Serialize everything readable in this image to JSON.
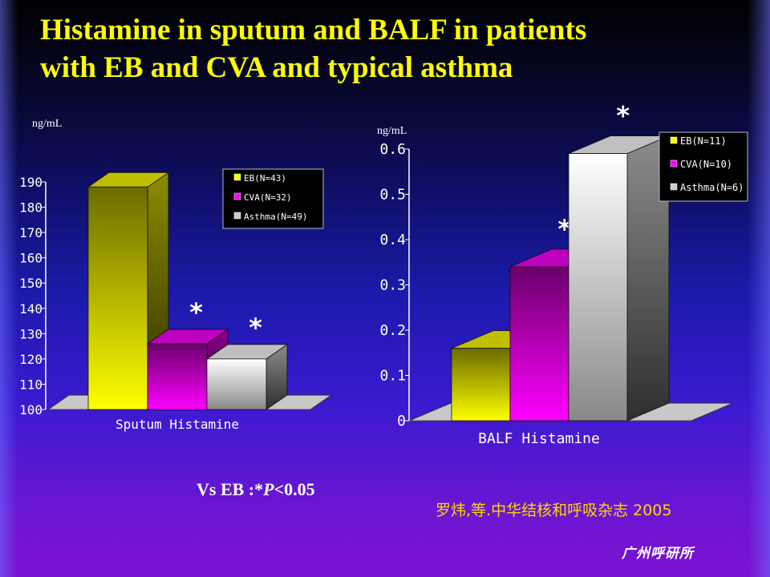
{
  "title_lines": [
    "Histamine in sputum and BALF in patients",
    "with EB and CVA and typical asthma"
  ],
  "footnote": {
    "prefix": "Vs EB :*",
    "p_symbol": "P",
    "suffix": "<0.05"
  },
  "citation": "罗炜,等.中华结核和呼吸杂志 2005",
  "logo_text": "广州呼研所",
  "chart_data": [
    {
      "type": "bar",
      "categories": [
        "Sputum Histamine"
      ],
      "xlabel": "Sputum Histamine",
      "ylabel": "ng/mL",
      "ylim": [
        100,
        190
      ],
      "yticks": [
        "100",
        "110",
        "120",
        "130",
        "140",
        "150",
        "160",
        "170",
        "180",
        "190"
      ],
      "grid": false,
      "legend_position": "top-right",
      "series": [
        {
          "name": "EB(N=43)",
          "values": [
            188
          ],
          "color": "#ffff00",
          "significant": false
        },
        {
          "name": "CVA(N=32)",
          "values": [
            126
          ],
          "color": "#ff00ff",
          "significant": true
        },
        {
          "name": "Asthma(N=49)",
          "values": [
            120
          ],
          "color": "#ffffff",
          "significant": true
        }
      ],
      "significance_marker": "*"
    },
    {
      "type": "bar",
      "categories": [
        "BALF Histamine"
      ],
      "xlabel": "BALF Histamine",
      "ylabel": "ng/mL",
      "ylim": [
        0,
        0.6
      ],
      "yticks": [
        "0",
        "0.1",
        "0.2",
        "0.3",
        "0.4",
        "0.5",
        "0.6"
      ],
      "grid": false,
      "legend_position": "top-right",
      "series": [
        {
          "name": "EB(N=11)",
          "values": [
            0.16
          ],
          "color": "#ffff00",
          "significant": false
        },
        {
          "name": "CVA(N=10)",
          "values": [
            0.34
          ],
          "color": "#ff00ff",
          "significant": true
        },
        {
          "name": "Asthma(N=6)",
          "values": [
            0.59
          ],
          "color": "#ffffff",
          "significant": true
        }
      ],
      "significance_marker": "*"
    }
  ]
}
